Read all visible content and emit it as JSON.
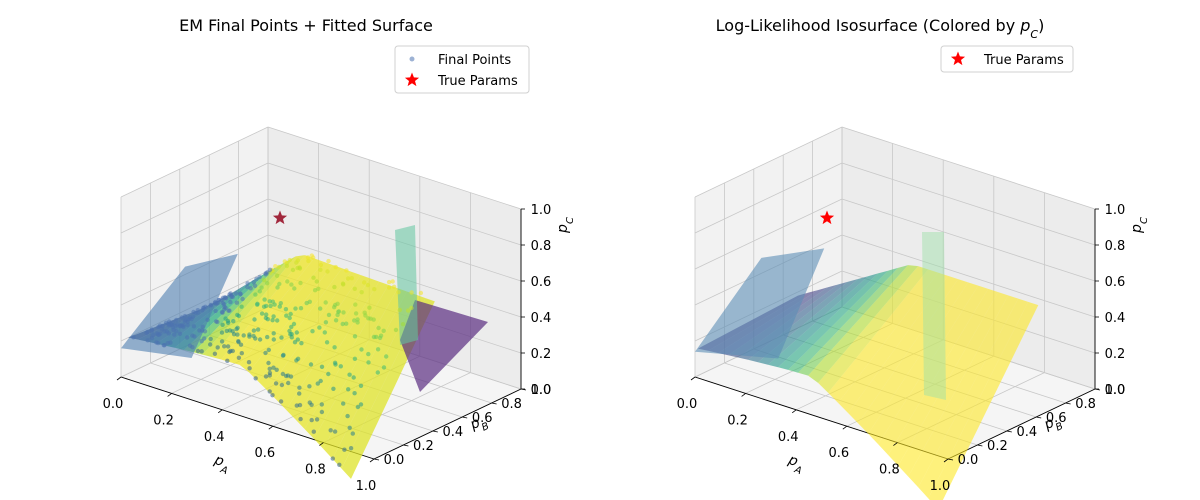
{
  "figure": {
    "panels": [
      {
        "title": "EM Final Points + Fitted Surface",
        "xlabel": "p_A",
        "ylabel": "p_B",
        "zlabel": "p_C",
        "legend": [
          "Final Points",
          "True Params"
        ]
      },
      {
        "title": "Log-Likelihood Isosurface (Colored by p_C)",
        "xlabel": "p_A",
        "ylabel": "p_B",
        "zlabel": "p_C",
        "legend": [
          "True Params"
        ]
      }
    ],
    "ticks": {
      "x": [
        "0.0",
        "0.2",
        "0.4",
        "0.6",
        "0.8",
        "1.0"
      ],
      "y": [
        "0.0",
        "0.2",
        "0.4",
        "0.6",
        "0.8",
        "1.0"
      ],
      "z": [
        "0.0",
        "0.2",
        "0.4",
        "0.6",
        "0.8",
        "1.0"
      ]
    }
  },
  "chart_data": [
    {
      "type": "scatter",
      "title": "EM Final Points + Fitted Surface",
      "xlabel": "p_A",
      "ylabel": "p_B",
      "zlabel": "p_C",
      "xlim": [
        0,
        1
      ],
      "ylim": [
        0,
        1
      ],
      "zlim": [
        0,
        1
      ],
      "grid": true,
      "legend_placement": "top-right",
      "colormap": "viridis",
      "series": [
        {
          "name": "Final Points",
          "marker": "dot",
          "color": "#4c72b0"
        },
        {
          "name": "True Params",
          "marker": "star",
          "color": "#ff0000",
          "x": 0.2,
          "y": 0.3,
          "z": 0.5
        }
      ],
      "surface_profile": {
        "pA": [
          0.0,
          0.1,
          0.2,
          0.3,
          0.4,
          0.5,
          0.6,
          0.7,
          0.8,
          0.9,
          1.0
        ],
        "pC_low_edge": [
          0.16,
          0.2,
          0.22,
          0.22,
          0.18,
          0.1,
          0.02,
          -0.1,
          -0.2,
          -0.25,
          -0.28
        ],
        "pC_ridge": [
          0.28,
          0.38,
          0.48,
          0.56,
          0.6,
          0.62,
          0.62,
          0.6,
          0.58,
          0.55,
          0.52
        ]
      }
    },
    {
      "type": "scatter",
      "title": "Log-Likelihood Isosurface (Colored by p_C)",
      "xlabel": "p_A",
      "ylabel": "p_B",
      "zlabel": "p_C",
      "xlim": [
        0,
        1
      ],
      "ylim": [
        0,
        1
      ],
      "zlim": [
        0,
        1
      ],
      "grid": true,
      "legend_placement": "top-right",
      "colormap": "viridis",
      "series": [
        {
          "name": "True Params",
          "marker": "star",
          "color": "#ff0000",
          "x": 0.2,
          "y": 0.3,
          "z": 0.5
        }
      ]
    }
  ]
}
